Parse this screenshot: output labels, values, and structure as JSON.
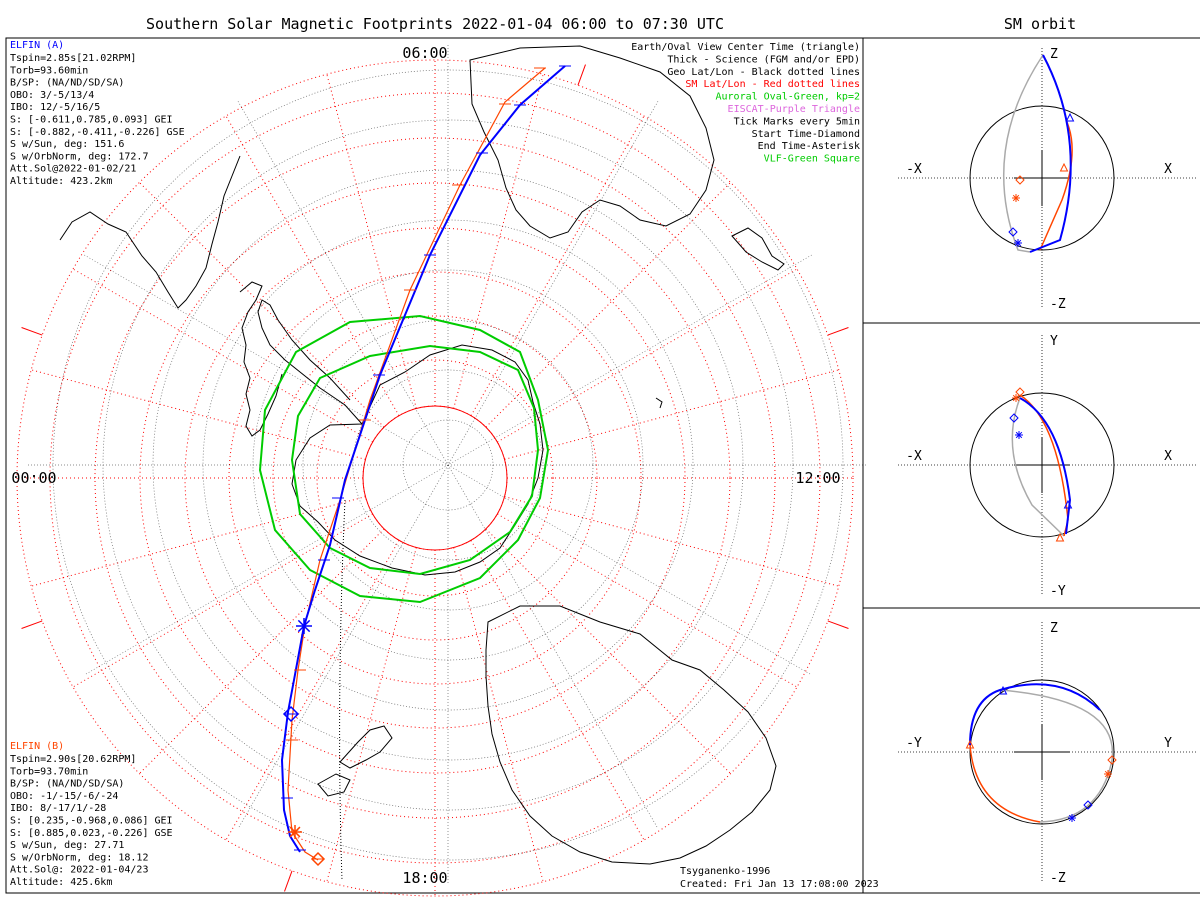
{
  "title": "Southern Solar Magnetic Footprints 2022-01-04 06:00 to 07:30 UTC",
  "orbit_title": "SM orbit",
  "mlt_labels": {
    "top": "06:00",
    "left": "00:00",
    "right": "12:00",
    "bottom": "18:00"
  },
  "elfin_a": {
    "name": "ELFIN (A)",
    "color": "#0000ff",
    "lines": [
      "Tspin=2.85s[21.02RPM]",
      "Torb=93.60min",
      "B/SP: (NA/ND/SD/SA)",
      "OBO: 3/-5/13/4",
      "IBO: 12/-5/16/5",
      "S: [-0.611,0.785,0.093] GEI",
      "S: [-0.882,-0.411,-0.226] GSE",
      "S w/Sun, deg: 151.6",
      "S w/OrbNorm, deg: 172.7",
      "Att.Sol@2022-01-02/21",
      "Altitude: 423.2km"
    ]
  },
  "elfin_b": {
    "name": "ELFIN (B)",
    "color": "#ff4500",
    "lines": [
      "Tspin=2.90s[20.62RPM]",
      "Torb=93.70min",
      "B/SP: (NA/ND/SD/SA)",
      "OBO: -1/-15/-6/-24",
      "IBO: 8/-17/1/-28",
      "S: [0.235,-0.968,0.086] GEI",
      "S: [0.885,0.023,-0.226] GSE",
      "S w/Sun, deg: 27.71",
      "S w/OrbNorm, deg: 18.12",
      "Att.Sol@: 2022-01-04/23",
      "Altitude: 425.6km"
    ]
  },
  "legend": [
    {
      "text": "Earth/Oval View Center Time (triangle)",
      "color": "#000000"
    },
    {
      "text": "Thick - Science (FGM and/or EPD)",
      "color": "#000000"
    },
    {
      "text": "Geo Lat/Lon - Black dotted lines",
      "color": "#000000"
    },
    {
      "text": "SM Lat/Lon - Red dotted lines",
      "color": "#ff0000"
    },
    {
      "text": "Auroral Oval-Green, kp=2",
      "color": "#00cc00"
    },
    {
      "text": "EISCAT-Purple Triangle",
      "color": "#dd66dd"
    },
    {
      "text": "Tick Marks every 5min",
      "color": "#000000"
    },
    {
      "text": "Start Time-Diamond",
      "color": "#000000"
    },
    {
      "text": "End Time-Asterisk",
      "color": "#000000"
    },
    {
      "text": "VLF-Green Square",
      "color": "#00cc00"
    }
  ],
  "credits": {
    "model": "Tsyganenko-1996",
    "created": "Created: Fri Jan 13 17:08:00 2023"
  },
  "orbit_panels": [
    {
      "left": "-X",
      "right": "X",
      "top": "Z",
      "bottom": "-Z"
    },
    {
      "left": "-X",
      "right": "X",
      "top": "Y",
      "bottom": "-Y"
    },
    {
      "left": "-Y",
      "right": "Y",
      "top": "Z",
      "bottom": "-Z"
    }
  ],
  "colors": {
    "elfin_a": "#0000ff",
    "elfin_b": "#ff4500",
    "sm_grid": "#ff0000",
    "geo_grid": "#000000",
    "auroral_oval": "#00cc00",
    "orbit_gray": "#aaaaaa"
  },
  "chart_data": [
    {
      "type": "scatter",
      "title": "Southern Solar Magnetic Footprints 2022-01-04 06:00 to 07:30 UTC",
      "projection": "polar, southern hemisphere, magnetic local time around rim",
      "mlt_ticks": [
        "00:00",
        "06:00",
        "12:00",
        "18:00"
      ],
      "series": [
        {
          "name": "ELFIN (A)",
          "color": "#0000ff"
        },
        {
          "name": "ELFIN (B)",
          "color": "#ff4500"
        }
      ],
      "overlays": [
        "Auroral Oval-Green, kp=2",
        "SM Lat/Lon - Red dotted lines",
        "Geo Lat/Lon - Black dotted lines"
      ]
    },
    {
      "type": "line",
      "title": "SM orbit",
      "panels": [
        "X-Z",
        "X-Y",
        "Y-Z"
      ],
      "series": [
        {
          "name": "ELFIN (A)",
          "color": "#0000ff"
        },
        {
          "name": "ELFIN (B)",
          "color": "#ff4500"
        }
      ]
    }
  ]
}
